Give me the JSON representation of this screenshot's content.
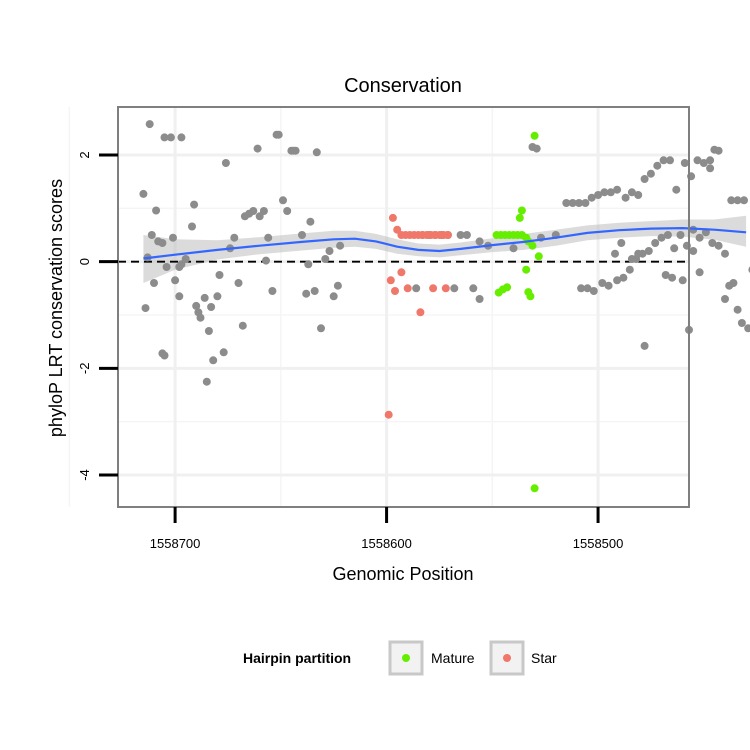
{
  "chart_data": {
    "type": "scatter",
    "title": "Conservation",
    "xlabel": "Genomic Position",
    "ylabel": "phyloP LRT conservation scores",
    "x_reversed": true,
    "xlim": [
      1558727,
      1558457
    ],
    "ylim": [
      -4.6,
      2.9
    ],
    "x_ticks": [
      1558700,
      1558600,
      1558500
    ],
    "y_ticks": [
      -4,
      -2,
      0,
      2
    ],
    "grid": true,
    "reference_line": {
      "y": 0,
      "style": "dashed",
      "color": "#000000"
    },
    "legend": {
      "title": "Hairpin partition",
      "position": "bottom",
      "entries": [
        {
          "label": "Mature",
          "color": "#66ee00"
        },
        {
          "label": "Star",
          "color": "#f0786a"
        }
      ]
    },
    "series": [
      {
        "name": "Other",
        "color": "#8c8c8c",
        "points": [
          [
            1558715,
            1.27
          ],
          [
            1558712,
            2.58
          ],
          [
            1558709,
            0.96
          ],
          [
            1558705,
            2.33
          ],
          [
            1558702,
            2.33
          ],
          [
            1558697,
            2.33
          ],
          [
            1558713,
            0.08
          ],
          [
            1558711,
            0.5
          ],
          [
            1558708,
            0.38
          ],
          [
            1558706,
            0.35
          ],
          [
            1558704,
            -0.1
          ],
          [
            1558701,
            0.45
          ],
          [
            1558714,
            -0.87
          ],
          [
            1558710,
            -0.4
          ],
          [
            1558706,
            -1.72
          ],
          [
            1558705,
            -1.76
          ],
          [
            1558700,
            -0.35
          ],
          [
            1558698,
            -0.65
          ],
          [
            1558698,
            -0.1
          ],
          [
            1558697,
            -0.05
          ],
          [
            1558695,
            0.05
          ],
          [
            1558692,
            0.66
          ],
          [
            1558691,
            1.07
          ],
          [
            1558690,
            -0.83
          ],
          [
            1558689,
            -0.95
          ],
          [
            1558688,
            -1.05
          ],
          [
            1558685,
            -2.25
          ],
          [
            1558686,
            -0.68
          ],
          [
            1558684,
            -1.3
          ],
          [
            1558683,
            -0.85
          ],
          [
            1558682,
            -1.85
          ],
          [
            1558680,
            -0.65
          ],
          [
            1558679,
            -0.25
          ],
          [
            1558677,
            -1.7
          ],
          [
            1558676,
            1.85
          ],
          [
            1558674,
            0.25
          ],
          [
            1558672,
            0.45
          ],
          [
            1558670,
            -0.4
          ],
          [
            1558668,
            -1.2
          ],
          [
            1558667,
            0.85
          ],
          [
            1558665,
            0.9
          ],
          [
            1558663,
            0.95
          ],
          [
            1558661,
            2.12
          ],
          [
            1558660,
            0.85
          ],
          [
            1558658,
            0.95
          ],
          [
            1558657,
            0.02
          ],
          [
            1558656,
            0.45
          ],
          [
            1558654,
            -0.55
          ],
          [
            1558652,
            2.38
          ],
          [
            1558651,
            2.38
          ],
          [
            1558649,
            1.15
          ],
          [
            1558647,
            0.95
          ],
          [
            1558645,
            2.08
          ],
          [
            1558644,
            2.08
          ],
          [
            1558643,
            2.08
          ],
          [
            1558640,
            0.5
          ],
          [
            1558638,
            -0.6
          ],
          [
            1558637,
            -0.05
          ],
          [
            1558636,
            0.75
          ],
          [
            1558634,
            -0.55
          ],
          [
            1558633,
            2.05
          ],
          [
            1558631,
            -1.25
          ],
          [
            1558629,
            0.05
          ],
          [
            1558627,
            0.2
          ],
          [
            1558625,
            -0.65
          ],
          [
            1558623,
            -0.45
          ],
          [
            1558622,
            0.3
          ],
          [
            1558586,
            -0.5
          ],
          [
            1558583,
            0.5
          ],
          [
            1558580,
            0.5
          ],
          [
            1558577,
            0.5
          ],
          [
            1558574,
            0.5
          ],
          [
            1558571,
            0.5
          ],
          [
            1558568,
            -0.5
          ],
          [
            1558565,
            0.5
          ],
          [
            1558562,
            0.5
          ],
          [
            1558559,
            -0.5
          ],
          [
            1558556,
            -0.7
          ],
          [
            1558556,
            0.38
          ],
          [
            1558552,
            0.3
          ],
          [
            1558540,
            0.25
          ],
          [
            1558531,
            2.15
          ],
          [
            1558529,
            2.12
          ],
          [
            1558527,
            0.45
          ],
          [
            1558520,
            0.5
          ],
          [
            1558515,
            1.1
          ],
          [
            1558512,
            1.1
          ],
          [
            1558509,
            1.1
          ],
          [
            1558506,
            1.1
          ],
          [
            1558503,
            1.2
          ],
          [
            1558500,
            1.25
          ],
          [
            1558497,
            1.3
          ],
          [
            1558494,
            1.3
          ],
          [
            1558491,
            1.35
          ],
          [
            1558487,
            1.2
          ],
          [
            1558484,
            1.3
          ],
          [
            1558481,
            1.25
          ],
          [
            1558478,
            1.55
          ],
          [
            1558475,
            1.65
          ],
          [
            1558472,
            1.8
          ],
          [
            1558469,
            1.9
          ],
          [
            1558466,
            1.9
          ],
          [
            1558463,
            1.35
          ],
          [
            1558459,
            1.85
          ],
          [
            1558456,
            1.6
          ],
          [
            1558453,
            1.9
          ],
          [
            1558450,
            1.85
          ],
          [
            1558447,
            1.75
          ],
          [
            1558447,
            1.9
          ],
          [
            1558445,
            2.1
          ],
          [
            1558443,
            2.08
          ],
          [
            1558508,
            -0.5
          ],
          [
            1558505,
            -0.5
          ],
          [
            1558502,
            -0.55
          ],
          [
            1558498,
            -0.4
          ],
          [
            1558495,
            -0.45
          ],
          [
            1558491,
            -0.35
          ],
          [
            1558488,
            -0.3
          ],
          [
            1558485,
            -0.15
          ],
          [
            1558482,
            0.05
          ],
          [
            1558479,
            0.15
          ],
          [
            1558476,
            0.2
          ],
          [
            1558473,
            0.35
          ],
          [
            1558470,
            0.45
          ],
          [
            1558467,
            0.5
          ],
          [
            1558464,
            0.25
          ],
          [
            1558461,
            0.5
          ],
          [
            1558458,
            0.3
          ],
          [
            1558455,
            0.6
          ],
          [
            1558452,
            0.45
          ],
          [
            1558449,
            0.55
          ],
          [
            1558446,
            0.35
          ],
          [
            1558443,
            0.3
          ],
          [
            1558440,
            0.15
          ],
          [
            1558437,
            1.15
          ],
          [
            1558434,
            1.15
          ],
          [
            1558431,
            1.15
          ],
          [
            1558440,
            -0.7
          ],
          [
            1558438,
            -0.45
          ],
          [
            1558436,
            -0.4
          ],
          [
            1558434,
            -0.9
          ],
          [
            1558432,
            -1.15
          ],
          [
            1558429,
            -1.25
          ],
          [
            1558427,
            -0.15
          ],
          [
            1558425,
            -0.1
          ],
          [
            1558478,
            -1.58
          ],
          [
            1558468,
            -0.25
          ],
          [
            1558465,
            -0.3
          ],
          [
            1558460,
            -0.35
          ],
          [
            1558457,
            -1.28
          ],
          [
            1558455,
            0.2
          ],
          [
            1558452,
            -0.2
          ],
          [
            1558492,
            0.15
          ],
          [
            1558489,
            0.35
          ],
          [
            1558484,
            0.05
          ],
          [
            1558481,
            0.15
          ]
        ]
      },
      {
        "name": "Mature",
        "color": "#66ee00",
        "points": [
          [
            1558548,
            0.5
          ],
          [
            1558546,
            0.5
          ],
          [
            1558544,
            0.5
          ],
          [
            1558542,
            0.5
          ],
          [
            1558540,
            0.5
          ],
          [
            1558538,
            0.5
          ],
          [
            1558537,
            0.82
          ],
          [
            1558536,
            0.96
          ],
          [
            1558536,
            0.5
          ],
          [
            1558534,
            0.45
          ],
          [
            1558533,
            0.38
          ],
          [
            1558531,
            0.3
          ],
          [
            1558547,
            -0.58
          ],
          [
            1558545,
            -0.52
          ],
          [
            1558543,
            -0.48
          ],
          [
            1558534,
            -0.15
          ],
          [
            1558533,
            -0.57
          ],
          [
            1558532,
            -0.65
          ],
          [
            1558530,
            2.36
          ],
          [
            1558528,
            0.1
          ],
          [
            1558530,
            -4.25
          ]
        ]
      },
      {
        "name": "Star",
        "color": "#f0786a",
        "points": [
          [
            1558597,
            0.82
          ],
          [
            1558595,
            0.6
          ],
          [
            1558593,
            0.5
          ],
          [
            1558591,
            0.5
          ],
          [
            1558589,
            0.5
          ],
          [
            1558587,
            0.5
          ],
          [
            1558585,
            0.5
          ],
          [
            1558583,
            0.5
          ],
          [
            1558581,
            0.5
          ],
          [
            1558579,
            0.5
          ],
          [
            1558577,
            0.5
          ],
          [
            1558575,
            0.5
          ],
          [
            1558573,
            0.5
          ],
          [
            1558571,
            0.5
          ],
          [
            1558598,
            -0.35
          ],
          [
            1558596,
            -0.55
          ],
          [
            1558593,
            -0.2
          ],
          [
            1558590,
            -0.5
          ],
          [
            1558584,
            -0.95
          ],
          [
            1558578,
            -0.5
          ],
          [
            1558572,
            -0.5
          ],
          [
            1558599,
            -2.87
          ]
        ]
      }
    ],
    "smooth": {
      "name": "loess",
      "color": "#3366ff",
      "points": [
        [
          1558715,
          0.06
        ],
        [
          1558700,
          0.13
        ],
        [
          1558680,
          0.22
        ],
        [
          1558660,
          0.3
        ],
        [
          1558640,
          0.37
        ],
        [
          1558625,
          0.42
        ],
        [
          1558615,
          0.43
        ],
        [
          1558605,
          0.38
        ],
        [
          1558595,
          0.28
        ],
        [
          1558585,
          0.22
        ],
        [
          1558575,
          0.2
        ],
        [
          1558565,
          0.24
        ],
        [
          1558550,
          0.31
        ],
        [
          1558535,
          0.37
        ],
        [
          1558520,
          0.45
        ],
        [
          1558505,
          0.54
        ],
        [
          1558490,
          0.59
        ],
        [
          1558475,
          0.62
        ],
        [
          1558460,
          0.63
        ],
        [
          1558445,
          0.6
        ],
        [
          1558430,
          0.55
        ]
      ],
      "band": [
        [
          1558715,
          -0.4,
          0.5
        ],
        [
          1558700,
          -0.15,
          0.42
        ],
        [
          1558680,
          0.04,
          0.4
        ],
        [
          1558660,
          0.14,
          0.46
        ],
        [
          1558640,
          0.21,
          0.53
        ],
        [
          1558625,
          0.26,
          0.58
        ],
        [
          1558615,
          0.28,
          0.58
        ],
        [
          1558605,
          0.24,
          0.52
        ],
        [
          1558595,
          0.15,
          0.42
        ],
        [
          1558585,
          0.1,
          0.34
        ],
        [
          1558575,
          0.08,
          0.32
        ],
        [
          1558565,
          0.12,
          0.36
        ],
        [
          1558550,
          0.18,
          0.44
        ],
        [
          1558535,
          0.22,
          0.52
        ],
        [
          1558520,
          0.3,
          0.6
        ],
        [
          1558505,
          0.4,
          0.68
        ],
        [
          1558490,
          0.45,
          0.73
        ],
        [
          1558475,
          0.48,
          0.76
        ],
        [
          1558460,
          0.47,
          0.79
        ],
        [
          1558445,
          0.41,
          0.79
        ],
        [
          1558430,
          0.28,
          0.86
        ]
      ]
    }
  }
}
